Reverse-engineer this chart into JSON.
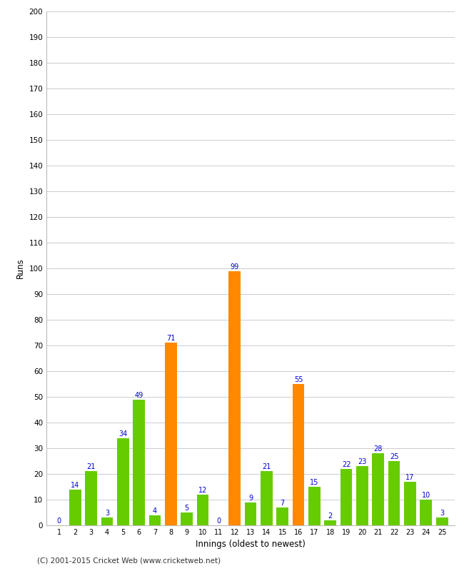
{
  "innings": [
    1,
    2,
    3,
    4,
    5,
    6,
    7,
    8,
    9,
    10,
    11,
    12,
    13,
    14,
    15,
    16,
    17,
    18,
    19,
    20,
    21,
    22,
    23,
    24,
    25
  ],
  "runs": [
    0,
    14,
    21,
    3,
    34,
    49,
    4,
    71,
    5,
    12,
    0,
    99,
    9,
    21,
    7,
    55,
    15,
    2,
    22,
    23,
    28,
    25,
    17,
    10,
    3
  ],
  "colors": [
    "#66cc00",
    "#66cc00",
    "#66cc00",
    "#66cc00",
    "#66cc00",
    "#66cc00",
    "#66cc00",
    "#ff8800",
    "#66cc00",
    "#66cc00",
    "#66cc00",
    "#ff8800",
    "#66cc00",
    "#66cc00",
    "#66cc00",
    "#ff8800",
    "#66cc00",
    "#66cc00",
    "#66cc00",
    "#66cc00",
    "#66cc00",
    "#66cc00",
    "#66cc00",
    "#66cc00",
    "#66cc00"
  ],
  "xlabel": "Innings (oldest to newest)",
  "ylabel": "Runs",
  "ylim": [
    0,
    200
  ],
  "yticks": [
    0,
    10,
    20,
    30,
    40,
    50,
    60,
    70,
    80,
    90,
    100,
    110,
    120,
    130,
    140,
    150,
    160,
    170,
    180,
    190,
    200
  ],
  "label_color": "#0000cc",
  "bg_color": "#ffffff",
  "grid_color": "#cccccc",
  "footer": "(C) 2001-2015 Cricket Web (www.cricketweb.net)",
  "bar_width": 0.75
}
